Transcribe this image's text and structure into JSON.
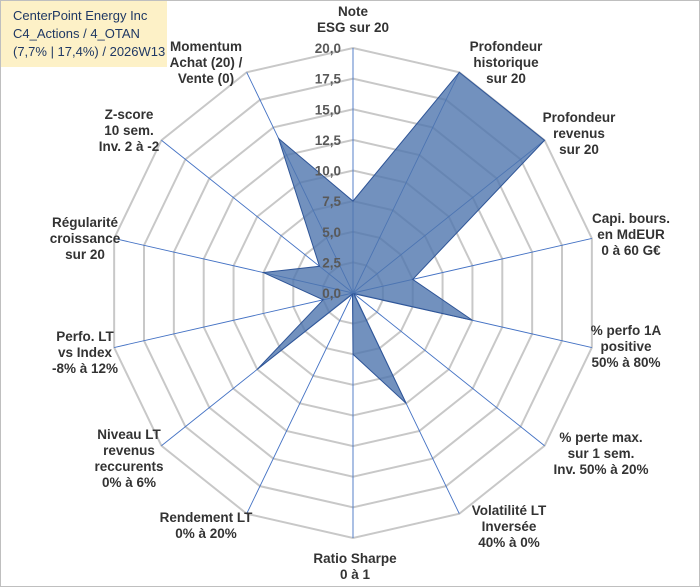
{
  "header": {
    "line1": "CenterPoint Energy Inc",
    "line2": "C4_Actions / 4_OTAN",
    "line3": "(7,7% | 17,4%) / 2026W13"
  },
  "colors": {
    "fill": "#4f76ae",
    "stroke": "#2f5597",
    "grid": "#c8c8c8",
    "spoke": "#4472c4",
    "title_bg": "#fdf1c7",
    "title_text": "#1f3864"
  },
  "chart_data": {
    "type": "radar",
    "title": "",
    "rmin": 0,
    "rmax": 20,
    "tick_labels": [
      "0,0",
      "2,5",
      "5,0",
      "7,5",
      "10,0",
      "12,5",
      "15,0",
      "17,5",
      "20,0"
    ],
    "categories": [
      [
        "Note",
        "ESG sur 20"
      ],
      [
        "Profondeur",
        "historique",
        "sur 20"
      ],
      [
        "Profondeur",
        "revenus",
        "sur 20"
      ],
      [
        "Capi. bours.",
        "en MdEUR",
        "0 à 60 G€"
      ],
      [
        "% perfo 1A",
        "positive",
        "50% à 80%"
      ],
      [
        "% perte max.",
        "sur 1 sem.",
        "Inv. 50% à 20%"
      ],
      [
        "Volatilité LT",
        "Inversée",
        "40% à 0%"
      ],
      [
        "Ratio Sharpe",
        "0 à 1"
      ],
      [
        "Rendement LT",
        "0% à 20%"
      ],
      [
        "Niveau LT",
        "revenus",
        "reccurents",
        "0% à 6%"
      ],
      [
        "Perfo. LT",
        "vs Index",
        "-8% à 12%"
      ],
      [
        "Régularité",
        "croissance",
        "sur 20"
      ],
      [
        "Z-score",
        "10 sem.",
        "Inv. 2 à -2"
      ],
      [
        "Momentum",
        "Achat (20) /",
        "Vente (0)"
      ]
    ],
    "series": [
      {
        "name": "CenterPoint Energy Inc",
        "values": [
          7.5,
          20,
          20,
          5,
          10,
          0.1,
          10,
          5,
          0.1,
          10,
          2.5,
          7.5,
          3.5,
          14
        ]
      }
    ]
  }
}
